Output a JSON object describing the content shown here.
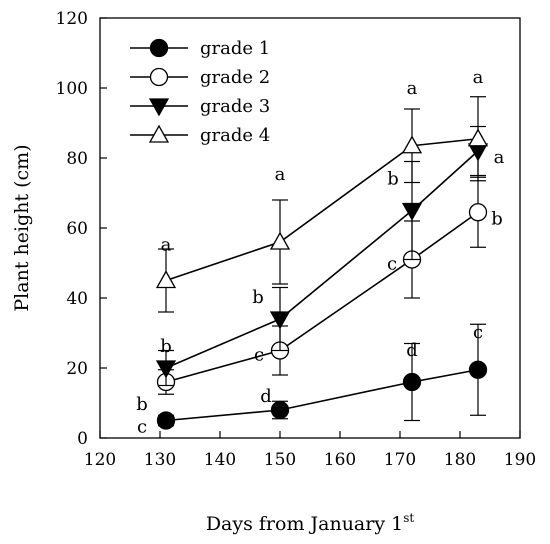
{
  "chart_data": {
    "type": "line",
    "title": "",
    "xlabel": "Days from January 1",
    "xlabel_superscript": "st",
    "ylabel": "Plant height (cm)",
    "xlim": [
      120,
      190
    ],
    "ylim": [
      0,
      120
    ],
    "xticks": [
      120,
      130,
      140,
      150,
      160,
      170,
      180,
      190
    ],
    "yticks": [
      0,
      20,
      40,
      60,
      80,
      100,
      120
    ],
    "grid": false,
    "legend_position": "top-left",
    "series": [
      {
        "name": "grade 1",
        "marker": "circle-filled",
        "points": [
          {
            "x": 131,
            "y": 5,
            "err": 1.5,
            "label": "c"
          },
          {
            "x": 150,
            "y": 8,
            "err": 2.5,
            "label": "d"
          },
          {
            "x": 172,
            "y": 16,
            "err": 11,
            "label": "d"
          },
          {
            "x": 183,
            "y": 19.5,
            "err": 13,
            "label": "c"
          }
        ]
      },
      {
        "name": "grade 2",
        "marker": "circle-open",
        "points": [
          {
            "x": 131,
            "y": 16,
            "err": 3.5,
            "label": "b"
          },
          {
            "x": 150,
            "y": 25,
            "err": 7,
            "label": "c"
          },
          {
            "x": 172,
            "y": 51,
            "err": 11,
            "label": "c"
          },
          {
            "x": 183,
            "y": 64.5,
            "err": 10,
            "label": "b"
          }
        ]
      },
      {
        "name": "grade 3",
        "marker": "triangle-down-filled",
        "points": [
          {
            "x": 131,
            "y": 20,
            "err": 5,
            "label": "b"
          },
          {
            "x": 150,
            "y": 34,
            "err": 9,
            "label": "b"
          },
          {
            "x": 172,
            "y": 65,
            "err": 14,
            "label": "b"
          },
          {
            "x": 183,
            "y": 82,
            "err": 7,
            "label": "a"
          }
        ]
      },
      {
        "name": "grade 4",
        "marker": "triangle-up-open",
        "points": [
          {
            "x": 131,
            "y": 45,
            "err": 9,
            "label": "a"
          },
          {
            "x": 150,
            "y": 56,
            "err": 12,
            "label": "a"
          },
          {
            "x": 172,
            "y": 83.5,
            "err": 10.5,
            "label": "a"
          },
          {
            "x": 183,
            "y": 85.5,
            "err": 12,
            "label": "a"
          }
        ]
      }
    ]
  }
}
